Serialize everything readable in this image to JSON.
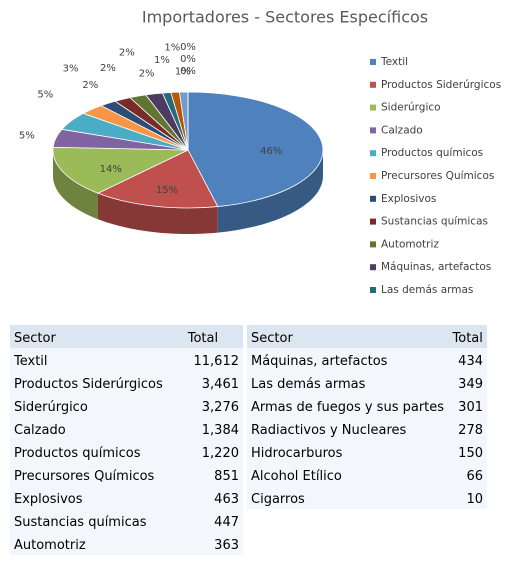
{
  "chart_data": {
    "type": "pie",
    "title": "Importadores - Sectores Específicos",
    "categories": [
      "Textil",
      "Productos Siderúrgicos",
      "Siderúrgico",
      "Calzado",
      "Productos químicos",
      "Precursores Químicos",
      "Explosivos",
      "Sustancias químicas",
      "Automotriz",
      "Máquinas, artefactos",
      "Las demás armas",
      null,
      null,
      null,
      null,
      null
    ],
    "values": [
      46,
      15,
      14,
      5,
      5,
      3,
      2,
      2,
      2,
      2,
      1,
      1,
      1,
      0,
      0,
      0
    ],
    "value_labels": [
      "46%",
      "15%",
      "14%",
      "5%",
      "5%",
      "3%",
      "2%",
      "2%",
      "2%",
      "2%",
      "1%",
      "1%",
      "1%",
      "0%",
      "0%",
      "0%"
    ],
    "colors": [
      "#4f81bd",
      "#c0504d",
      "#9bbb59",
      "#8064a2",
      "#4bacc6",
      "#f79646",
      "#2c4d75",
      "#772c2a",
      "#5f7530",
      "#4d3b62",
      "#276a7c",
      "#b65708",
      "#729aca",
      "#cd7371",
      "#afc97a",
      "#9d87b8"
    ],
    "legend": "right"
  },
  "tables": [
    {
      "header": [
        "Sector",
        "Total"
      ],
      "rows": [
        [
          "Textil",
          "11,612"
        ],
        [
          "Productos Siderúrgicos",
          "3,461"
        ],
        [
          "Siderúrgico",
          "3,276"
        ],
        [
          "Calzado",
          "1,384"
        ],
        [
          "Productos químicos",
          "1,220"
        ],
        [
          "Precursores Químicos",
          "851"
        ],
        [
          "Explosivos",
          "463"
        ],
        [
          "Sustancias químicas",
          "447"
        ],
        [
          "Automotriz",
          "363"
        ]
      ]
    },
    {
      "header": [
        "Sector",
        "Total"
      ],
      "rows": [
        [
          "Máquinas, artefactos",
          "434"
        ],
        [
          "Las demás armas",
          "349"
        ],
        [
          "Armas de fuegos y sus partes",
          "301"
        ],
        [
          "Radiactivos y Nucleares",
          "278"
        ],
        [
          "Hidrocarburos",
          "150"
        ],
        [
          "Alcohol Etílico",
          "66"
        ],
        [
          "Cigarros",
          "10"
        ]
      ]
    }
  ]
}
